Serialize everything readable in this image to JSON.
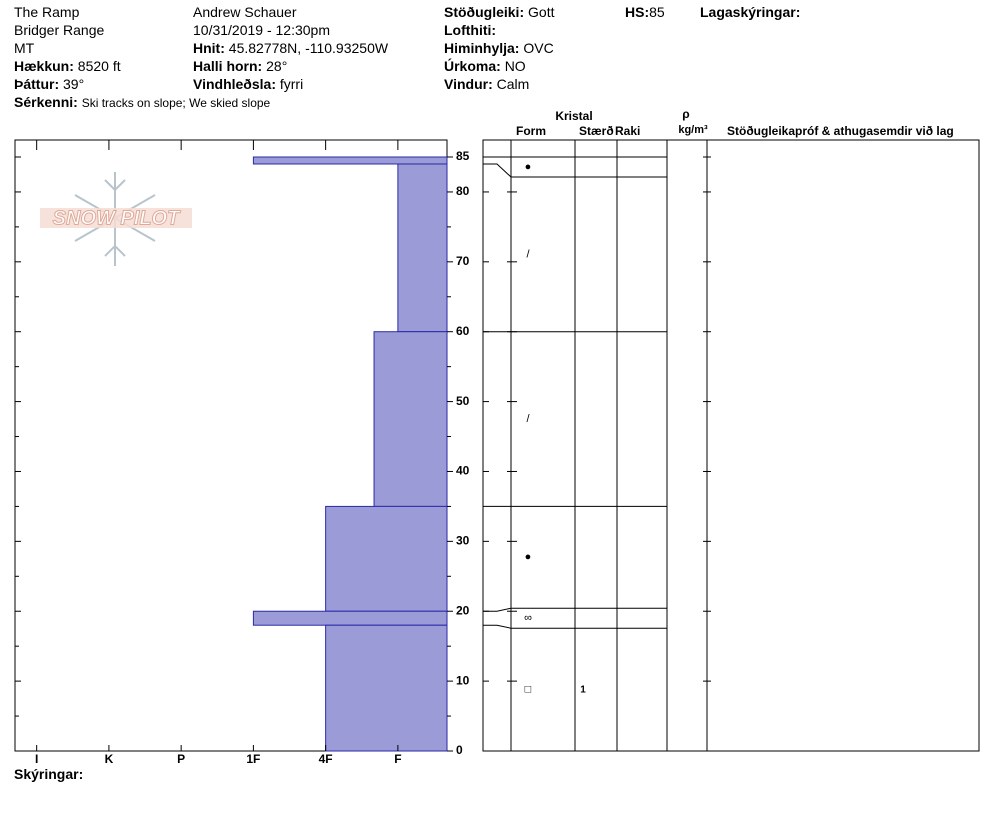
{
  "header": {
    "site": "The Ramp",
    "range": "Bridger Range",
    "state": "MT",
    "elevation": {
      "label": "Hækkun:",
      "value": "8520 ft"
    },
    "aspect": {
      "label": "Þáttur:",
      "value": "39°"
    },
    "features": {
      "label": "Sérkenni:",
      "value": "Ski tracks on slope; We skied slope"
    },
    "observer": "Andrew Schauer",
    "datetime": "10/31/2019 - 12:30pm",
    "coords": {
      "label": "Hnit:",
      "value": "45.82778N, -110.93250W"
    },
    "slope": {
      "label": "Halli horn:",
      "value": "28°"
    },
    "wind_loading": {
      "label": "Vindhleðsla:",
      "value": "fyrri"
    },
    "stability": {
      "label": "Stöðugleiki:",
      "value": "Gott"
    },
    "air_temp": {
      "label": "Lofthiti:"
    },
    "sky": {
      "label": "Himinhylja:",
      "value": "OVC"
    },
    "precip": {
      "label": "Úrkoma:",
      "value": "NO"
    },
    "wind": {
      "label": "Vindur:",
      "value": "Calm"
    },
    "hs": {
      "label": "HS:",
      "value": "85"
    },
    "layer_notes": "Lagaskýringar:"
  },
  "logo": "SNOW PILOT",
  "columns": {
    "crystal": "Kristal",
    "form": "Form",
    "size": "Stærð",
    "moisture": "Raki",
    "density_symbol": "ρ",
    "density_unit": "kg/m³",
    "tests": "Stöðugleikapróf & athugasemdir við lag"
  },
  "footer": "Skýringar:",
  "chart_data": {
    "type": "snow_profile",
    "ylim": [
      0,
      85
    ],
    "yticks": [
      0,
      10,
      20,
      30,
      40,
      50,
      60,
      70,
      80,
      85
    ],
    "yticks_minor": [
      5,
      15,
      25,
      35,
      45,
      55,
      65,
      75
    ],
    "xlim": [
      6.3,
      0.32
    ],
    "xticks": [
      {
        "value": 6,
        "label": "I"
      },
      {
        "value": 5,
        "label": "K"
      },
      {
        "value": 4,
        "label": "P"
      },
      {
        "value": 3,
        "label": "1F"
      },
      {
        "value": 2,
        "label": "4F"
      },
      {
        "value": 1,
        "label": "F"
      }
    ],
    "bar_color": "#9b9bd7",
    "layers": [
      {
        "top": 85,
        "bottom": 84,
        "hardness": 3,
        "form": "●"
      },
      {
        "top": 84,
        "bottom": 60,
        "hardness": 1,
        "form": "/"
      },
      {
        "top": 60,
        "bottom": 35,
        "hardness": 1.33,
        "form": "/"
      },
      {
        "top": 35,
        "bottom": 20,
        "hardness": 2,
        "form": "●"
      },
      {
        "top": 20,
        "bottom": 18,
        "hardness": 3,
        "form": "∞"
      },
      {
        "top": 18,
        "bottom": 0,
        "hardness": 2,
        "form": "□",
        "size": "1"
      }
    ]
  }
}
